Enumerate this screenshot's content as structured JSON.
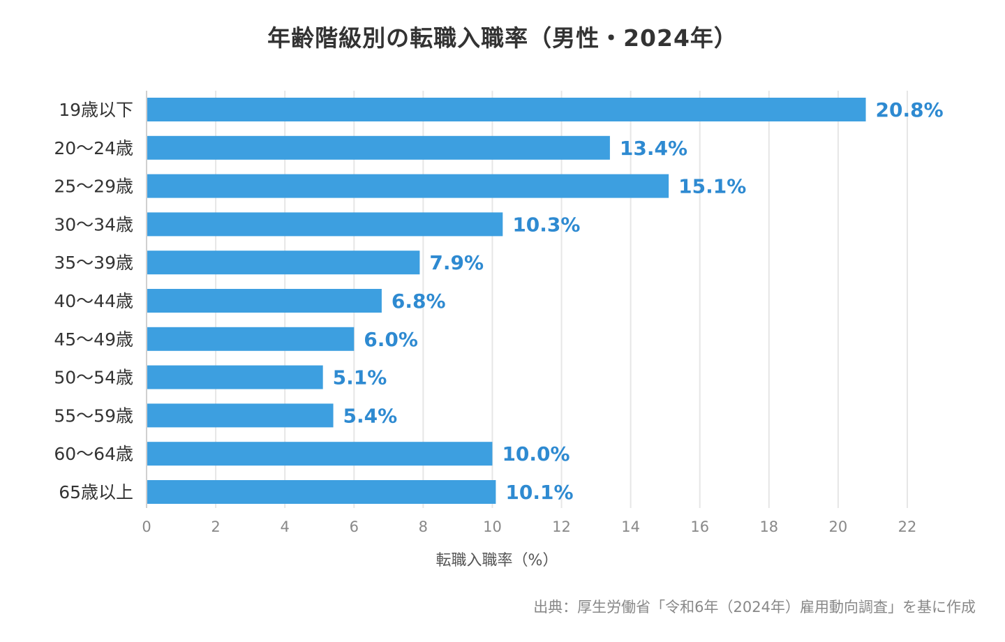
{
  "chart_data": {
    "type": "bar",
    "orientation": "horizontal",
    "title": "年齢階級別の転職入職率（男性・2024年）",
    "categories": [
      "19歳以下",
      "20〜24歳",
      "25〜29歳",
      "30〜34歳",
      "35〜39歳",
      "40〜44歳",
      "45〜49歳",
      "50〜54歳",
      "55〜59歳",
      "60〜64歳",
      "65歳以上"
    ],
    "values": [
      20.8,
      13.4,
      15.1,
      10.3,
      7.9,
      6.8,
      6.0,
      5.1,
      5.4,
      10.0,
      10.1
    ],
    "data_labels": [
      "20.8%",
      "13.4%",
      "15.1%",
      "10.3%",
      "7.9%",
      "6.8%",
      "6.0%",
      "5.1%",
      "5.4%",
      "10.0%",
      "10.1%"
    ],
    "xlabel": "転職入職率（%）",
    "ylabel": "",
    "xlim": [
      0,
      22
    ],
    "xticks": [
      0,
      2,
      4,
      6,
      8,
      10,
      12,
      14,
      16,
      18,
      20,
      22
    ],
    "grid": true,
    "legend": "none",
    "colors": {
      "bar": "#3d9fe0",
      "label": "#2e8ad1",
      "grid": "#e6e6e6",
      "axis": "#d0d0d0"
    }
  },
  "source": "出典：厚生労働省「令和6年（2024年）雇用動向調査」を基に作成"
}
